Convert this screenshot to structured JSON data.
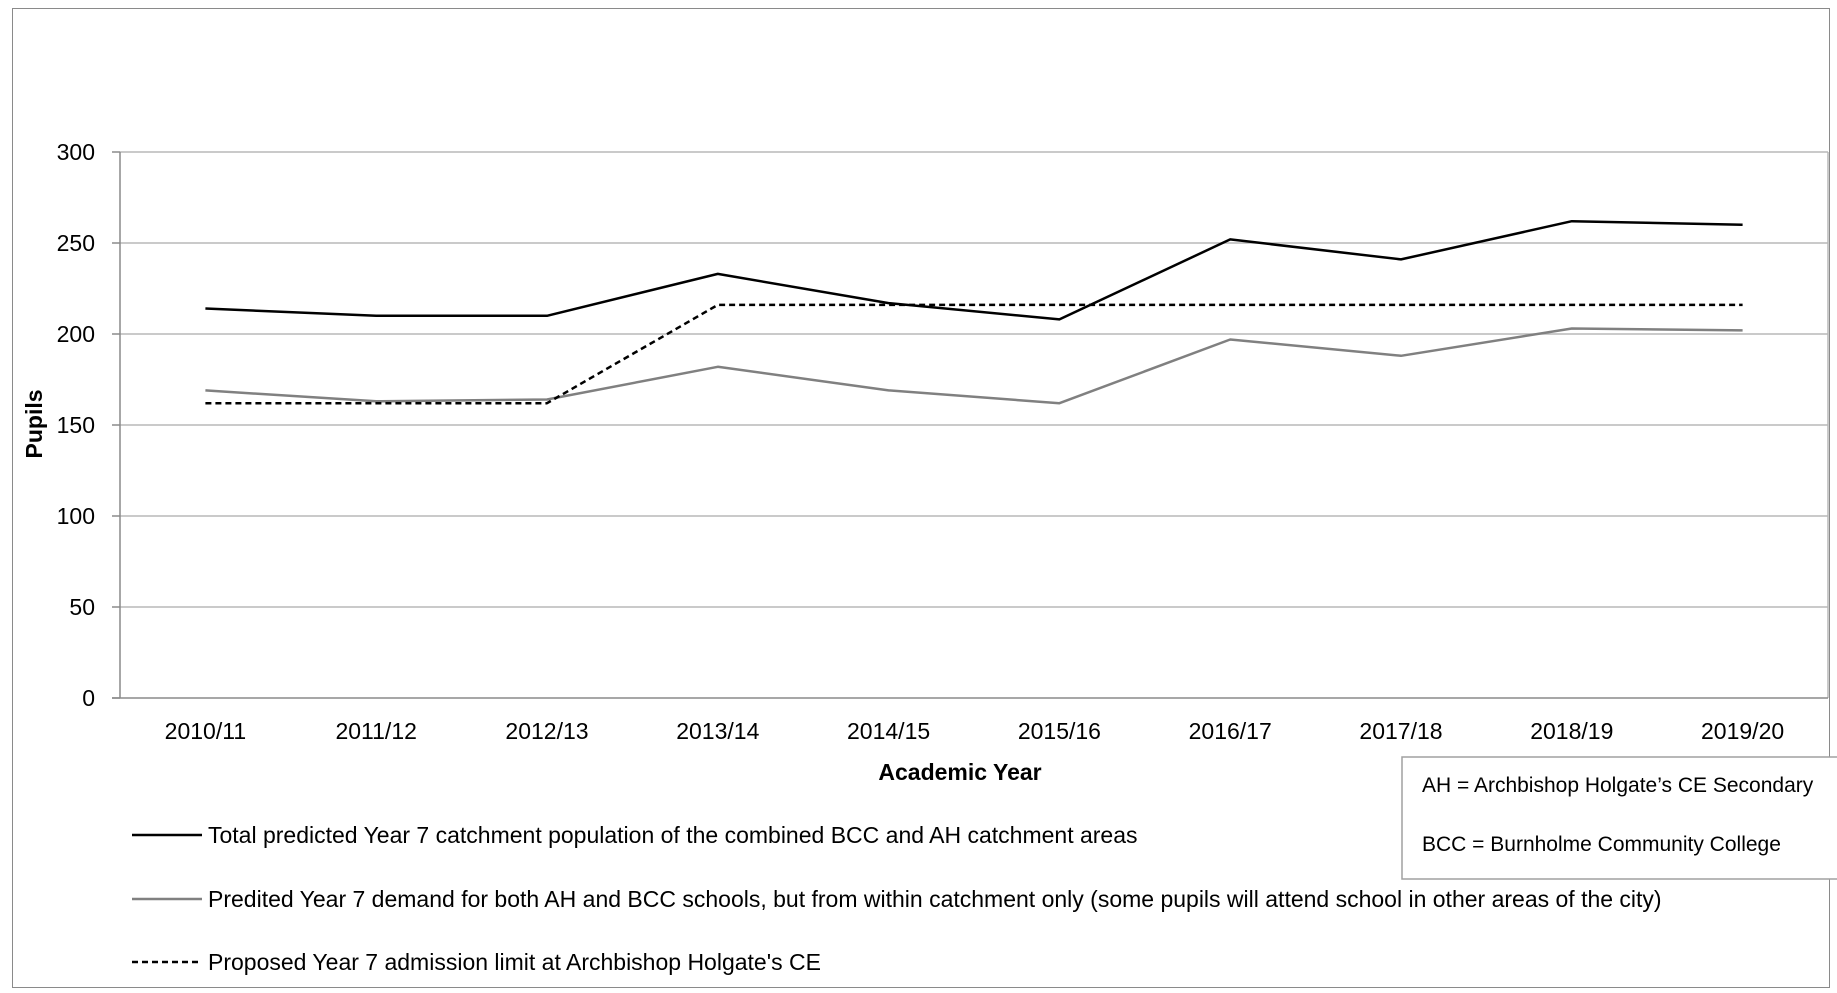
{
  "chart_data": {
    "type": "line",
    "title": "",
    "xlabel": "Academic Year",
    "ylabel": "Pupils",
    "ylim": [
      0,
      300
    ],
    "yticks": [
      0,
      50,
      100,
      150,
      200,
      250,
      300
    ],
    "grid": true,
    "legend_position": "bottom",
    "categories": [
      "2010/11",
      "2011/12",
      "2012/13",
      "2013/14",
      "2014/15",
      "2015/16",
      "2016/17",
      "2017/18",
      "2018/19",
      "2019/20"
    ],
    "series": [
      {
        "name": "Total predicted Year 7 catchment population of the combined BCC and AH catchment areas",
        "color": "#000000",
        "style": "solid",
        "values": [
          214,
          210,
          210,
          233,
          217,
          208,
          252,
          241,
          262,
          260
        ]
      },
      {
        "name": "Predited Year 7 demand for both AH and BCC schools, but from within catchment only (some pupils will attend school in other areas of the city)",
        "color": "#808080",
        "style": "solid",
        "values": [
          169,
          163,
          164,
          182,
          169,
          162,
          197,
          188,
          203,
          202
        ]
      },
      {
        "name": "Proposed Year 7 admission limit at Archbishop Holgate's CE",
        "color": "#000000",
        "style": "dashed",
        "values": [
          162,
          162,
          162,
          216,
          216,
          216,
          216,
          216,
          216,
          216
        ]
      }
    ],
    "annotations": [
      "AH = Archbishop Holgate’s CE Secondary",
      "BCC = Burnholme Community College"
    ]
  }
}
